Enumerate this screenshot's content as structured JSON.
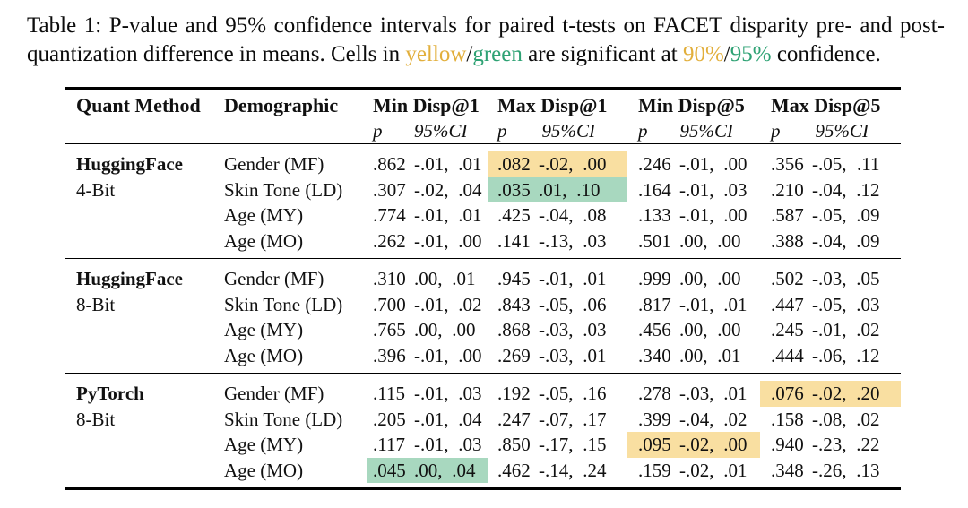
{
  "caption": {
    "line1": "Table 1: P-value and 95% confidence intervals for paired t-tests on FACET disparity pre- and post-",
    "line2_prefix": "quantization difference in means. Cells in ",
    "yellow_word": "yellow",
    "slash1": "/",
    "green_word": "green",
    "line2_mid": " are significant at ",
    "pct90": "90%",
    "slash2": "/",
    "pct95": "95%",
    "line2_suffix": " confidence."
  },
  "colors": {
    "yellow_text": "#E2AF3C",
    "green_text": "#2EA274",
    "yellow_bg": "#F9DFA1",
    "green_bg": "#A8D8BF"
  },
  "table": {
    "ci_sep": ",",
    "headers": {
      "quant_method": "Quant Method",
      "demographic": "Demographic",
      "groups": [
        "Min Disp@1",
        "Max Disp@1",
        "Min Disp@5",
        "Max Disp@5"
      ],
      "p_label": "p",
      "ci_label": "95%CI"
    },
    "groups": [
      {
        "method_line1": "HuggingFace",
        "method_line2": "4-Bit",
        "rows": [
          {
            "demographic": "Gender (MF)",
            "cells": [
              {
                "p": ".862",
                "lo": "-.01",
                "hi": ".01",
                "hl": "none"
              },
              {
                "p": ".082",
                "lo": "-.02",
                "hi": ".00",
                "hl": "yellow"
              },
              {
                "p": ".246",
                "lo": "-.01",
                "hi": ".00",
                "hl": "none"
              },
              {
                "p": ".356",
                "lo": "-.05",
                "hi": ".11",
                "hl": "none"
              }
            ]
          },
          {
            "demographic": "Skin Tone (LD)",
            "cells": [
              {
                "p": ".307",
                "lo": "-.02",
                "hi": ".04",
                "hl": "none"
              },
              {
                "p": ".035",
                "lo": ".01",
                "hi": ".10",
                "hl": "green"
              },
              {
                "p": ".164",
                "lo": "-.01",
                "hi": ".03",
                "hl": "none"
              },
              {
                "p": ".210",
                "lo": "-.04",
                "hi": ".12",
                "hl": "none"
              }
            ]
          },
          {
            "demographic": "Age (MY)",
            "cells": [
              {
                "p": ".774",
                "lo": "-.01",
                "hi": ".01",
                "hl": "none"
              },
              {
                "p": ".425",
                "lo": "-.04",
                "hi": ".08",
                "hl": "none"
              },
              {
                "p": ".133",
                "lo": "-.01",
                "hi": ".00",
                "hl": "none"
              },
              {
                "p": ".587",
                "lo": "-.05",
                "hi": ".09",
                "hl": "none"
              }
            ]
          },
          {
            "demographic": "Age (MO)",
            "cells": [
              {
                "p": ".262",
                "lo": "-.01",
                "hi": ".00",
                "hl": "none"
              },
              {
                "p": ".141",
                "lo": "-.13",
                "hi": ".03",
                "hl": "none"
              },
              {
                "p": ".501",
                "lo": ".00",
                "hi": ".00",
                "hl": "none"
              },
              {
                "p": ".388",
                "lo": "-.04",
                "hi": ".09",
                "hl": "none"
              }
            ]
          }
        ]
      },
      {
        "method_line1": "HuggingFace",
        "method_line2": "8-Bit",
        "rows": [
          {
            "demographic": "Gender (MF)",
            "cells": [
              {
                "p": ".310",
                "lo": ".00",
                "hi": ".01",
                "hl": "none"
              },
              {
                "p": ".945",
                "lo": "-.01",
                "hi": ".01",
                "hl": "none"
              },
              {
                "p": ".999",
                "lo": ".00",
                "hi": ".00",
                "hl": "none"
              },
              {
                "p": ".502",
                "lo": "-.03",
                "hi": ".05",
                "hl": "none"
              }
            ]
          },
          {
            "demographic": "Skin Tone (LD)",
            "cells": [
              {
                "p": ".700",
                "lo": "-.01",
                "hi": ".02",
                "hl": "none"
              },
              {
                "p": ".843",
                "lo": "-.05",
                "hi": ".06",
                "hl": "none"
              },
              {
                "p": ".817",
                "lo": "-.01",
                "hi": ".01",
                "hl": "none"
              },
              {
                "p": ".447",
                "lo": "-.05",
                "hi": ".03",
                "hl": "none"
              }
            ]
          },
          {
            "demographic": "Age (MY)",
            "cells": [
              {
                "p": ".765",
                "lo": ".00",
                "hi": ".00",
                "hl": "none"
              },
              {
                "p": ".868",
                "lo": "-.03",
                "hi": ".03",
                "hl": "none"
              },
              {
                "p": ".456",
                "lo": ".00",
                "hi": ".00",
                "hl": "none"
              },
              {
                "p": ".245",
                "lo": "-.01",
                "hi": ".02",
                "hl": "none"
              }
            ]
          },
          {
            "demographic": "Age (MO)",
            "cells": [
              {
                "p": ".396",
                "lo": "-.01",
                "hi": ".00",
                "hl": "none"
              },
              {
                "p": ".269",
                "lo": "-.03",
                "hi": ".01",
                "hl": "none"
              },
              {
                "p": ".340",
                "lo": ".00",
                "hi": ".01",
                "hl": "none"
              },
              {
                "p": ".444",
                "lo": "-.06",
                "hi": ".12",
                "hl": "none"
              }
            ]
          }
        ]
      },
      {
        "method_line1": "PyTorch",
        "method_line2": "8-Bit",
        "rows": [
          {
            "demographic": "Gender (MF)",
            "cells": [
              {
                "p": ".115",
                "lo": "-.01",
                "hi": ".03",
                "hl": "none"
              },
              {
                "p": ".192",
                "lo": "-.05",
                "hi": ".16",
                "hl": "none"
              },
              {
                "p": ".278",
                "lo": "-.03",
                "hi": ".01",
                "hl": "none"
              },
              {
                "p": ".076",
                "lo": "-.02",
                "hi": ".20",
                "hl": "yellow"
              }
            ]
          },
          {
            "demographic": "Skin Tone (LD)",
            "cells": [
              {
                "p": ".205",
                "lo": "-.01",
                "hi": ".04",
                "hl": "none"
              },
              {
                "p": ".247",
                "lo": "-.07",
                "hi": ".17",
                "hl": "none"
              },
              {
                "p": ".399",
                "lo": "-.04",
                "hi": ".02",
                "hl": "none"
              },
              {
                "p": ".158",
                "lo": "-.08",
                "hi": ".02",
                "hl": "none"
              }
            ]
          },
          {
            "demographic": "Age (MY)",
            "cells": [
              {
                "p": ".117",
                "lo": "-.01",
                "hi": ".03",
                "hl": "none"
              },
              {
                "p": ".850",
                "lo": "-.17",
                "hi": ".15",
                "hl": "none"
              },
              {
                "p": ".095",
                "lo": "-.02",
                "hi": ".00",
                "hl": "yellow"
              },
              {
                "p": ".940",
                "lo": "-.23",
                "hi": ".22",
                "hl": "none"
              }
            ]
          },
          {
            "demographic": "Age (MO)",
            "cells": [
              {
                "p": ".045",
                "lo": ".00",
                "hi": ".04",
                "hl": "green"
              },
              {
                "p": ".462",
                "lo": "-.14",
                "hi": ".24",
                "hl": "none"
              },
              {
                "p": ".159",
                "lo": "-.02",
                "hi": ".01",
                "hl": "none"
              },
              {
                "p": ".348",
                "lo": "-.26",
                "hi": ".13",
                "hl": "none"
              }
            ]
          }
        ]
      }
    ]
  }
}
